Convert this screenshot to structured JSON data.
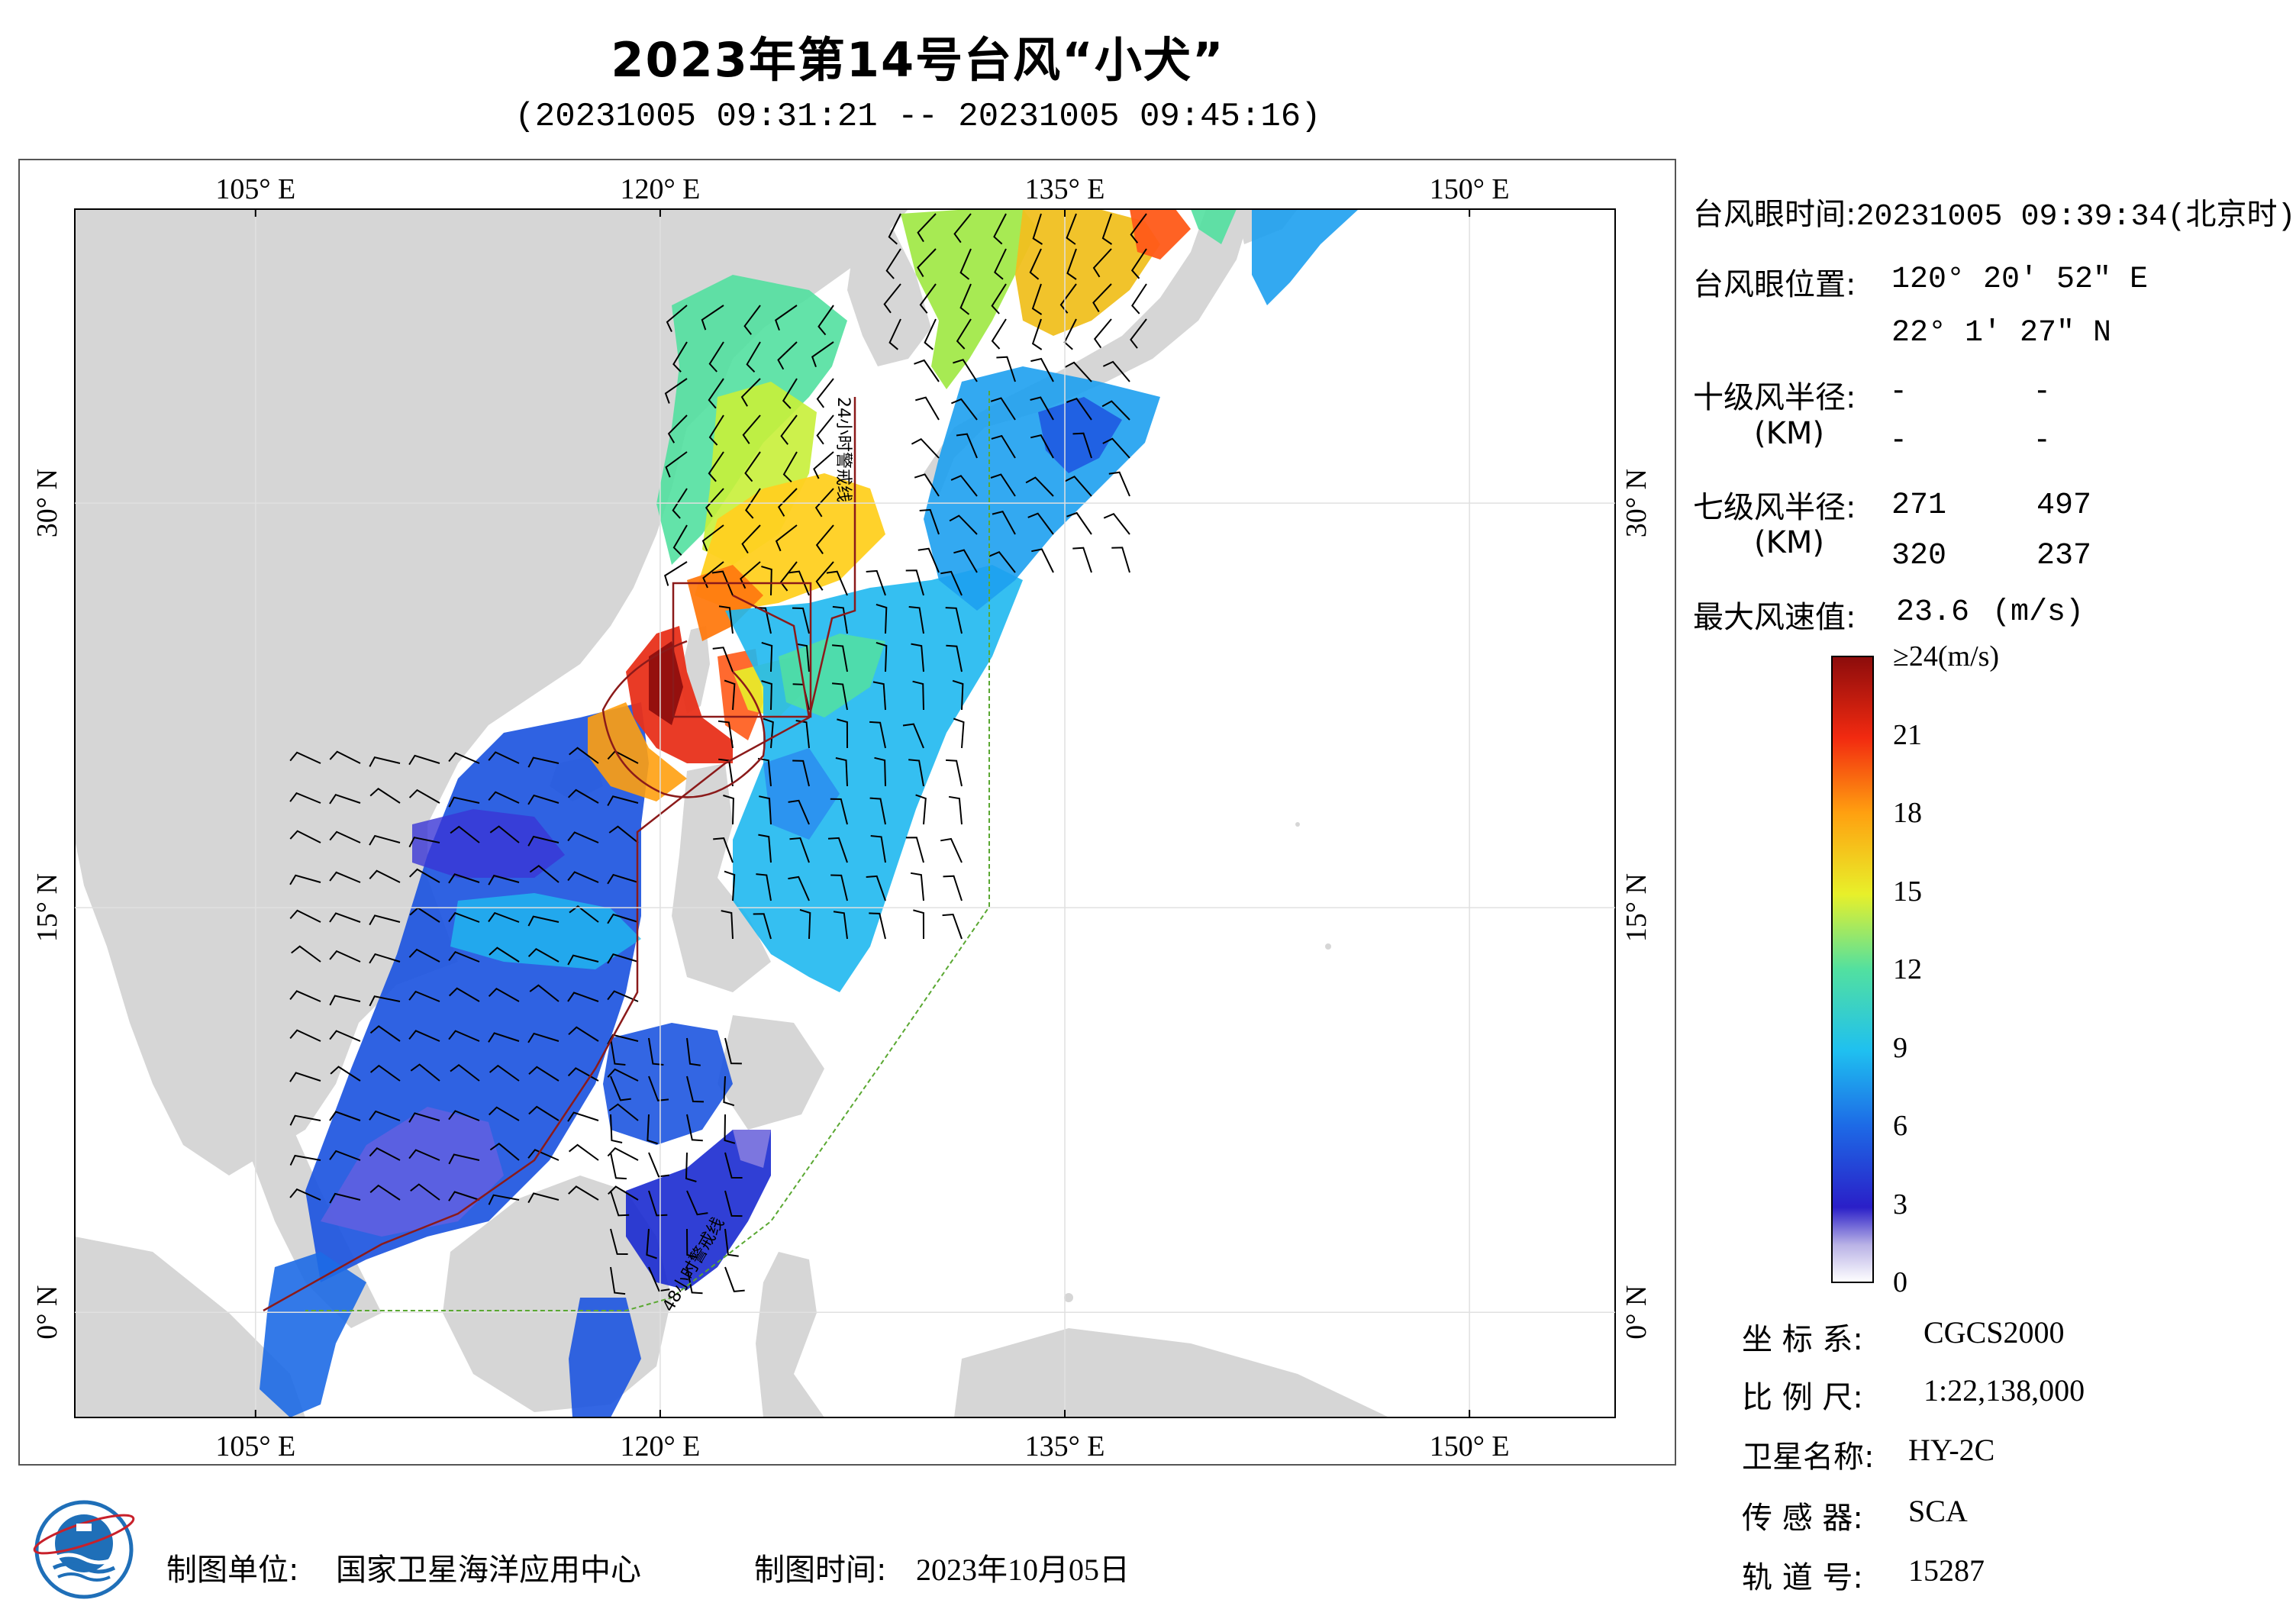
{
  "title": "2023年第14号台风“小犬”",
  "subtitle": "(20231005 09:31:21 -- 20231005 09:45:16)",
  "map": {
    "lon_ticks": [
      {
        "label": "105° E",
        "lon": 105
      },
      {
        "label": "120° E",
        "lon": 120
      },
      {
        "label": "135° E",
        "lon": 135
      },
      {
        "label": "150° E",
        "lon": 150
      }
    ],
    "lat_ticks": [
      {
        "label": "30° N",
        "lat": 30
      },
      {
        "label": "15° N",
        "lat": 15
      },
      {
        "label": "0° N",
        "lat": 0
      }
    ],
    "extent": {
      "lon_min": 98.3,
      "lon_max": 155.4,
      "lat_min": -3.9,
      "lat_max": 40.9
    },
    "track_labels": {
      "h24": "24小时警戒线",
      "h48": "48小时警戒线"
    },
    "colors": {
      "land": "#d6d6d6",
      "sea": "#ffffff",
      "track": "#8b1a1a",
      "warning": "#5aa832"
    }
  },
  "info": {
    "eye_time_label": "台风眼时间:",
    "eye_time_value": "20231005 09:39:34(北京时)",
    "eye_pos_label": "台风眼位置:",
    "eye_lon": "120° 20′ 52″ E",
    "eye_lat": "22° 1′ 27″ N",
    "r10_label": "十级风半径:",
    "r10_unit": "(KM)",
    "r10_values": [
      "-",
      "-",
      "-",
      "-"
    ],
    "r7_label": "七级风半径:",
    "r7_unit": "(KM)",
    "r7_values": [
      "271",
      "497",
      "320",
      "237"
    ],
    "max_wind_label": "最大风速值:",
    "max_wind_value": "23.6",
    "max_wind_unit": "(m/s)"
  },
  "colorbar": {
    "labels": [
      {
        "text": "≥24(m/s)",
        "value": 24
      },
      {
        "text": "21",
        "value": 21
      },
      {
        "text": "18",
        "value": 18
      },
      {
        "text": "15",
        "value": 15
      },
      {
        "text": "12",
        "value": 12
      },
      {
        "text": "9",
        "value": 9
      },
      {
        "text": "6",
        "value": 6
      },
      {
        "text": "3",
        "value": 3
      },
      {
        "text": "0",
        "value": 0
      }
    ]
  },
  "meta": {
    "crs_label": "坐 标 系:",
    "crs_value": "CGCS2000",
    "scale_label": "比 例 尺:",
    "scale_value": "1:22,138,000",
    "sat_label": "卫星名称:",
    "sat_value": "HY-2C",
    "sensor_label": "传 感 器:",
    "sensor_value": "SCA",
    "orbit_label": "轨 道 号:",
    "orbit_value": "15287"
  },
  "footer": {
    "org_label": "制图单位:",
    "org_value": "国家卫星海洋应用中心",
    "date_label": "制图时间:",
    "date_value": "2023年10月05日"
  }
}
